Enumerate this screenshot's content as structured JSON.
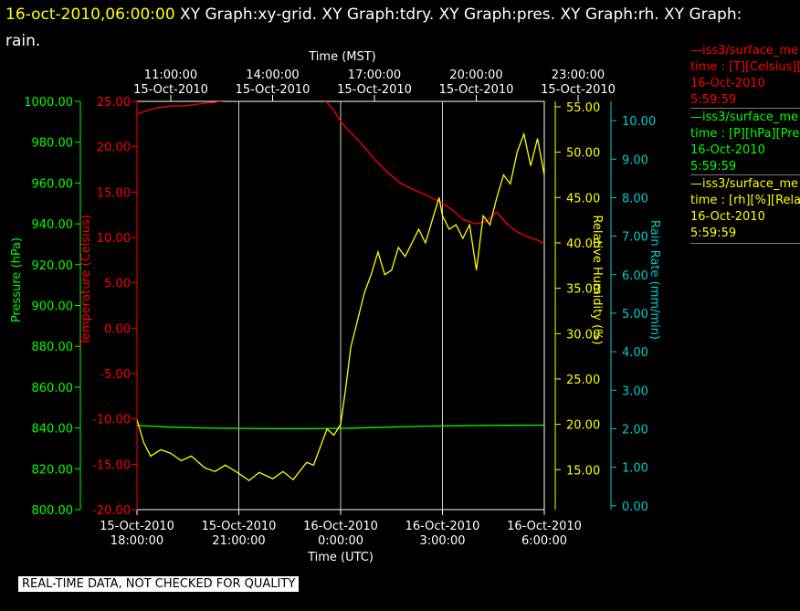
{
  "header": {
    "timestamp": "16-oct-2010,06:00:00",
    "text": " XY Graph:xy-grid.  XY Graph:tdry.  XY Graph:pres.  XY Graph:rh.  XY Graph: rain."
  },
  "legend": [
    {
      "line1": "—iss3/surface_me",
      "line2": "time : [T][Celsius][T",
      "line3": "16-Oct-2010",
      "line4": "5:59:59",
      "color": "#ff0000"
    },
    {
      "line1": "—iss3/surface_me",
      "line2": "time : [P][hPa][Pres",
      "line3": "16-Oct-2010",
      "line4": "5:59:59",
      "color": "#00ff00"
    },
    {
      "line1": "—iss3/surface_me",
      "line2": "time : [rh][%][Relati",
      "line3": "16-Oct-2010",
      "line4": "5:59:59",
      "color": "#ffff00"
    }
  ],
  "footer": {
    "quality_note": "REAL-TIME DATA, NOT CHECKED FOR QUALITY"
  },
  "chart_data": {
    "type": "line",
    "top_axis": {
      "title": "Time (MST)",
      "ticks": [
        {
          "time": "11:00:00",
          "date": "15-Oct-2010",
          "x_hours_utc": 18
        },
        {
          "time": "14:00:00",
          "date": "15-Oct-2010",
          "x_hours_utc": 21
        },
        {
          "time": "17:00:00",
          "date": "15-Oct-2010",
          "x_hours_utc": 24
        },
        {
          "time": "20:00:00",
          "date": "15-Oct-2010",
          "x_hours_utc": 27
        },
        {
          "time": "23:00:00",
          "date": "15-Oct-2010",
          "x_hours_utc": 30
        }
      ]
    },
    "bottom_axis": {
      "title": "Time (UTC)",
      "ticks": [
        {
          "date": "15-Oct-2010",
          "time": "18:00:00",
          "x_hours_utc": 18
        },
        {
          "date": "15-Oct-2010",
          "time": "21:00:00",
          "x_hours_utc": 21
        },
        {
          "date": "16-Oct-2010",
          "time": "0:00:00",
          "x_hours_utc": 24
        },
        {
          "date": "16-Oct-2010",
          "time": "3:00:00",
          "x_hours_utc": 27
        },
        {
          "date": "16-Oct-2010",
          "time": "6:00:00",
          "x_hours_utc": 30
        }
      ],
      "xlim_hours_utc": [
        18,
        30
      ]
    },
    "y_axes": [
      {
        "id": "pres",
        "label": "Pressure (hPa)",
        "color": "#00ff00",
        "ticks": [
          "800.00",
          "820.00",
          "840.00",
          "860.00",
          "880.00",
          "900.00",
          "920.00",
          "940.00",
          "960.00",
          "980.00",
          "1000.00"
        ],
        "ylim": [
          800,
          1000
        ]
      },
      {
        "id": "temp",
        "label": "Temperature (Celsius)",
        "color": "#ff0000",
        "ticks": [
          "-20.00",
          "-15.00",
          "-10.00",
          "-5.00",
          "0.00",
          "5.00",
          "10.00",
          "15.00",
          "20.00",
          "25.00"
        ],
        "ylim": [
          -20,
          25
        ]
      },
      {
        "id": "rh",
        "label": "Relative Humidity (%)",
        "color": "#ffff00",
        "ticks": [
          "15.00",
          "20.00",
          "25.00",
          "30.00",
          "35.00",
          "40.00",
          "45.00",
          "50.00",
          "55.00"
        ],
        "ylim": [
          10.6,
          55.6
        ]
      },
      {
        "id": "rain",
        "label": "Rain Rate (mm/min)",
        "color": "#00cccc",
        "ticks": [
          "0.00",
          "1.00",
          "2.00",
          "3.00",
          "4.00",
          "5.00",
          "6.00",
          "7.00",
          "8.00",
          "9.00",
          "10.00"
        ],
        "ylim": [
          -0.1,
          10.5
        ]
      }
    ],
    "series": [
      {
        "name": "iss3/surface_me [T][Celsius]",
        "axis": "temp",
        "color": "#ff0000",
        "x": [
          18.0,
          18.3,
          18.6,
          19.0,
          19.4,
          19.8,
          20.0,
          20.3,
          20.6,
          21.0,
          21.5,
          22.0,
          22.5,
          23.0,
          23.4,
          23.6,
          23.8,
          24.0,
          24.2,
          24.5,
          24.8,
          25.0,
          25.4,
          25.8,
          26.2,
          26.6,
          27.0,
          27.3,
          27.6,
          28.0,
          28.3,
          28.6,
          28.9,
          29.2,
          29.5,
          29.8,
          30.0
        ],
        "y": [
          23.6,
          24.0,
          24.3,
          24.5,
          24.5,
          24.7,
          24.8,
          24.9,
          25.1,
          25.3,
          25.5,
          25.6,
          25.6,
          25.6,
          25.4,
          24.9,
          24.0,
          22.8,
          21.9,
          20.8,
          19.5,
          18.6,
          17.1,
          15.9,
          15.2,
          14.5,
          13.8,
          13.0,
          12.0,
          11.5,
          11.8,
          12.8,
          11.5,
          10.6,
          10.1,
          9.7,
          9.3
        ]
      },
      {
        "name": "iss3/surface_me [P][hPa]",
        "axis": "pres",
        "color": "#00ff00",
        "x": [
          18.0,
          19.0,
          20.0,
          21.0,
          22.0,
          23.0,
          24.0,
          25.0,
          26.0,
          27.0,
          28.0,
          29.0,
          30.0
        ],
        "y": [
          841.2,
          840.4,
          840.0,
          839.8,
          839.7,
          839.7,
          839.8,
          840.2,
          840.7,
          841.0,
          841.2,
          841.3,
          841.4
        ]
      },
      {
        "name": "iss3/surface_me [rh][%]",
        "axis": "rh",
        "color": "#ffff00",
        "x": [
          18.0,
          18.2,
          18.4,
          18.7,
          19.0,
          19.3,
          19.6,
          20.0,
          20.3,
          20.6,
          21.0,
          21.3,
          21.6,
          22.0,
          22.3,
          22.6,
          23.0,
          23.2,
          23.4,
          23.6,
          23.8,
          24.0,
          24.15,
          24.3,
          24.5,
          24.7,
          24.9,
          25.1,
          25.3,
          25.5,
          25.7,
          25.9,
          26.1,
          26.3,
          26.5,
          26.7,
          26.9,
          27.0,
          27.2,
          27.4,
          27.6,
          27.8,
          28.0,
          28.2,
          28.4,
          28.6,
          28.8,
          29.0,
          29.2,
          29.4,
          29.6,
          29.8,
          30.0
        ],
        "y": [
          20.5,
          18.0,
          16.5,
          17.2,
          16.8,
          16.0,
          16.5,
          15.2,
          14.8,
          15.5,
          14.6,
          13.8,
          14.7,
          14.0,
          14.8,
          13.9,
          15.8,
          15.5,
          17.5,
          19.5,
          18.8,
          20.0,
          24.0,
          28.5,
          31.5,
          34.5,
          36.5,
          39.0,
          36.5,
          37.0,
          39.5,
          38.5,
          40.0,
          41.5,
          40.0,
          42.5,
          45.0,
          43.0,
          41.5,
          42.0,
          40.5,
          42.0,
          37.0,
          43.0,
          42.0,
          45.0,
          47.5,
          46.5,
          50.0,
          52.0,
          48.5,
          51.5,
          47.5
        ]
      }
    ],
    "grid": true
  }
}
